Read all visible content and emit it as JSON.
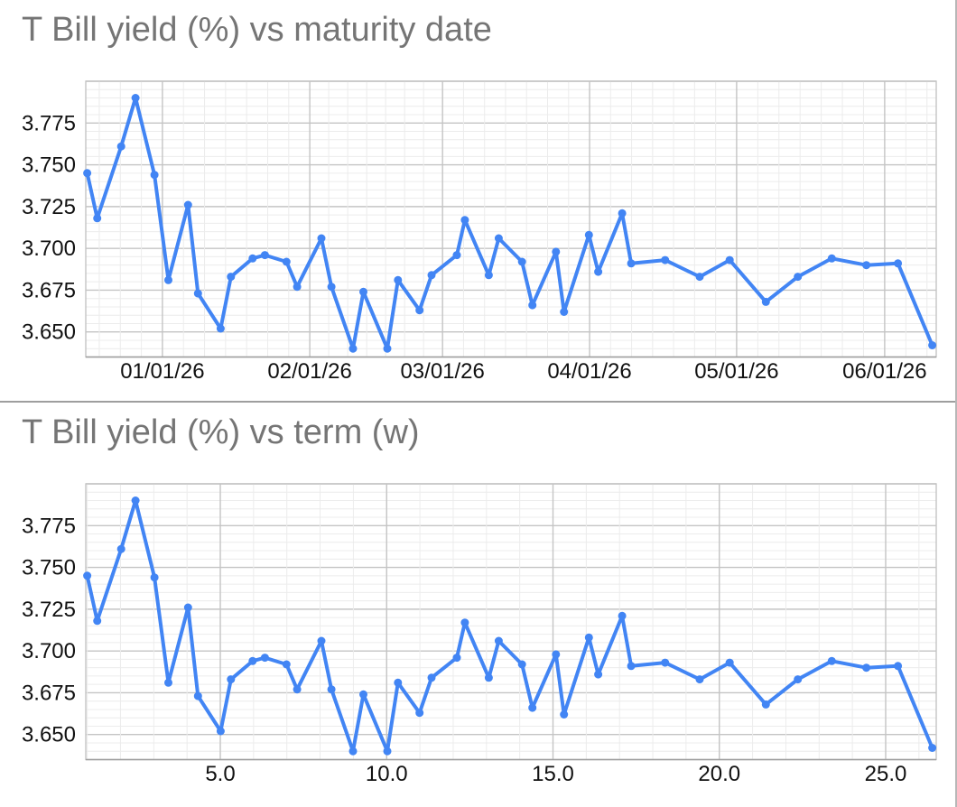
{
  "style": {
    "series_color": "#4285f4",
    "grid_minor_color": "#ececec",
    "grid_major_color": "#c4c4c4",
    "plot_border_color": "#c4c4c4",
    "axis_line_color": "#9e9e9e",
    "title_color": "#757575",
    "axis_label_color": "#111111",
    "divider_color": "#9e9e9e",
    "page_edge_color": "#b7b7b7",
    "background": "#ffffff"
  },
  "chart_data": [
    {
      "type": "line",
      "title": "T Bill yield (%) vs maturity date",
      "xlabel": "maturity date",
      "ylabel": "T Bill yield (%)",
      "legend": "none",
      "grid": "on",
      "x_minor_mode": "subdivide7",
      "x_tick_labels": [
        "01/01/26",
        "02/01/26",
        "03/01/26",
        "04/01/26",
        "05/01/26",
        "06/01/26"
      ],
      "x_tick_positions_weeks": [
        3.26,
        7.69,
        11.68,
        16.1,
        20.52,
        24.97
      ],
      "y_tick_labels": [
        "3.650",
        "3.675",
        "3.700",
        "3.725",
        "3.750",
        "3.775"
      ],
      "y_tick_values": [
        3.65,
        3.675,
        3.7,
        3.725,
        3.75,
        3.775
      ],
      "ylim": [
        3.635,
        3.8
      ],
      "xlim_weeks": [
        0.956,
        26.52
      ],
      "x_weeks": [
        1.0,
        1.3,
        2.02,
        2.45,
        3.02,
        3.44,
        4.03,
        4.33,
        5.01,
        5.32,
        5.97,
        6.34,
        6.99,
        7.31,
        8.04,
        8.34,
        8.99,
        9.3,
        10.02,
        10.34,
        10.99,
        11.35,
        12.11,
        12.35,
        13.07,
        13.37,
        14.07,
        14.38,
        15.09,
        15.33,
        16.08,
        16.36,
        17.08,
        17.35,
        18.37,
        19.41,
        20.31,
        21.4,
        22.36,
        23.38,
        24.42,
        25.37,
        26.4
      ],
      "y": [
        3.745,
        3.718,
        3.761,
        3.79,
        3.744,
        3.681,
        3.726,
        3.673,
        3.652,
        3.683,
        3.694,
        3.696,
        3.692,
        3.677,
        3.706,
        3.677,
        3.64,
        3.674,
        3.64,
        3.681,
        3.663,
        3.684,
        3.696,
        3.717,
        3.684,
        3.706,
        3.692,
        3.666,
        3.698,
        3.662,
        3.708,
        3.686,
        3.721,
        3.691,
        3.693,
        3.683,
        3.693,
        3.668,
        3.683,
        3.694,
        3.69,
        3.691,
        3.642
      ]
    },
    {
      "type": "line",
      "title": "T Bill yield (%) vs term (w)",
      "xlabel": "term (w)",
      "ylabel": "T Bill yield (%)",
      "legend": "none",
      "grid": "on",
      "x_minor_mode": "integers",
      "x_tick_labels": [
        "5.0",
        "10.0",
        "15.0",
        "20.0",
        "25.0"
      ],
      "x_tick_positions_weeks": [
        5,
        10,
        15,
        20,
        25
      ],
      "y_tick_labels": [
        "3.650",
        "3.675",
        "3.700",
        "3.725",
        "3.750",
        "3.775"
      ],
      "y_tick_values": [
        3.65,
        3.675,
        3.7,
        3.725,
        3.75,
        3.775
      ],
      "ylim": [
        3.635,
        3.8
      ],
      "xlim_weeks": [
        0.956,
        26.52
      ],
      "x_weeks": [
        1.0,
        1.3,
        2.02,
        2.45,
        3.02,
        3.44,
        4.03,
        4.33,
        5.01,
        5.32,
        5.97,
        6.34,
        6.99,
        7.31,
        8.04,
        8.34,
        8.99,
        9.3,
        10.02,
        10.34,
        10.99,
        11.35,
        12.11,
        12.35,
        13.07,
        13.37,
        14.07,
        14.38,
        15.09,
        15.33,
        16.08,
        16.36,
        17.08,
        17.35,
        18.37,
        19.41,
        20.31,
        21.4,
        22.36,
        23.38,
        24.42,
        25.37,
        26.4
      ],
      "y": [
        3.745,
        3.718,
        3.761,
        3.79,
        3.744,
        3.681,
        3.726,
        3.673,
        3.652,
        3.683,
        3.694,
        3.696,
        3.692,
        3.677,
        3.706,
        3.677,
        3.64,
        3.674,
        3.64,
        3.681,
        3.663,
        3.684,
        3.696,
        3.717,
        3.684,
        3.706,
        3.692,
        3.666,
        3.698,
        3.662,
        3.708,
        3.686,
        3.721,
        3.691,
        3.693,
        3.683,
        3.693,
        3.668,
        3.683,
        3.694,
        3.69,
        3.691,
        3.642
      ]
    }
  ]
}
